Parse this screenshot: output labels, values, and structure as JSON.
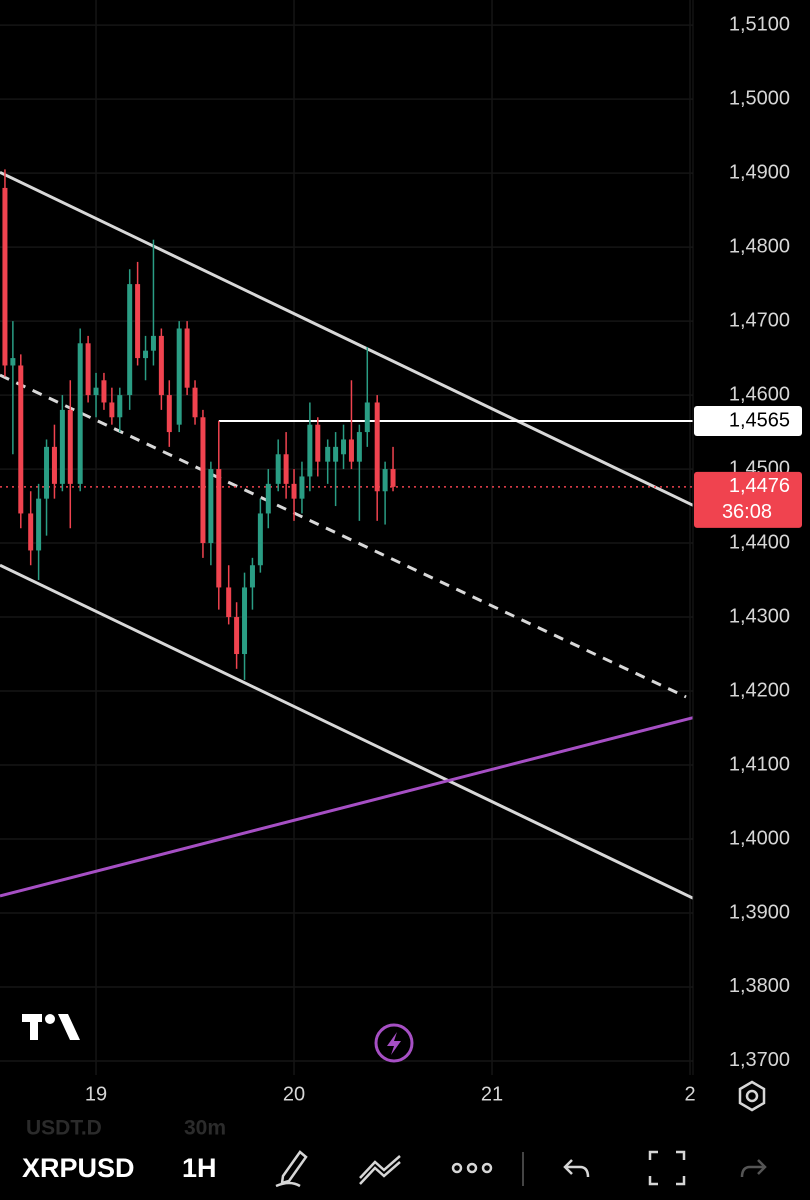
{
  "chart_data": {
    "type": "candlestick",
    "xlim": [
      18.515,
      22.015
    ],
    "xticks": [
      19,
      20,
      21,
      {
        "value": 22,
        "label": "2"
      }
    ],
    "ylim": [
      1.3681,
      1.5134
    ],
    "yticks": [
      {
        "value": 1.51,
        "label": "1,5100"
      },
      {
        "value": 1.5,
        "label": "1,5000"
      },
      {
        "value": 1.49,
        "label": "1,4900"
      },
      {
        "value": 1.48,
        "label": "1,4800"
      },
      {
        "value": 1.47,
        "label": "1,4700"
      },
      {
        "value": 1.46,
        "label": "1,4600"
      },
      {
        "value": 1.45,
        "label": "1,4500"
      },
      {
        "value": 1.44,
        "label": "1,4400"
      },
      {
        "value": 1.43,
        "label": "1,4300"
      },
      {
        "value": 1.42,
        "label": "1,4200"
      },
      {
        "value": 1.41,
        "label": "1,4100"
      },
      {
        "value": 1.4,
        "label": "1,4000"
      },
      {
        "value": 1.39,
        "label": "1,3900"
      },
      {
        "value": 1.38,
        "label": "1,3800"
      },
      {
        "value": 1.37,
        "label": "1,3700"
      }
    ],
    "grid": true,
    "up_color": "#2a9d84",
    "down_color": "#f0434f",
    "x": [
      18.54,
      18.58,
      18.62,
      18.67,
      18.71,
      18.75,
      18.79,
      18.83,
      18.87,
      18.92,
      18.96,
      19.0,
      19.04,
      19.08,
      19.12,
      19.17,
      19.21,
      19.25,
      19.29,
      19.33,
      19.37,
      19.42,
      19.46,
      19.5,
      19.54,
      19.58,
      19.62,
      19.67,
      19.71,
      19.75,
      19.79,
      19.83,
      19.87,
      19.92,
      19.96,
      20.0,
      20.04,
      20.08,
      20.12,
      20.17,
      20.21,
      20.25,
      20.29,
      20.33,
      20.37,
      20.42,
      20.46,
      20.5
    ],
    "open": [
      1.488,
      1.464,
      1.464,
      1.444,
      1.439,
      1.446,
      1.453,
      1.448,
      1.458,
      1.448,
      1.467,
      1.46,
      1.462,
      1.459,
      1.457,
      1.46,
      1.475,
      1.465,
      1.466,
      1.468,
      1.46,
      1.456,
      1.469,
      1.461,
      1.457,
      1.44,
      1.45,
      1.434,
      1.43,
      1.425,
      1.434,
      1.437,
      1.444,
      1.448,
      1.452,
      1.448,
      1.446,
      1.449,
      1.456,
      1.451,
      1.451,
      1.452,
      1.454,
      1.451,
      1.455,
      1.459,
      1.447,
      1.45
    ],
    "high": [
      1.4905,
      1.47,
      1.4655,
      1.447,
      1.448,
      1.454,
      1.456,
      1.46,
      1.462,
      1.469,
      1.468,
      1.463,
      1.463,
      1.461,
      1.461,
      1.477,
      1.478,
      1.468,
      1.481,
      1.469,
      1.462,
      1.47,
      1.47,
      1.462,
      1.458,
      1.451,
      1.4565,
      1.437,
      1.432,
      1.436,
      1.438,
      1.446,
      1.45,
      1.454,
      1.455,
      1.45,
      1.451,
      1.459,
      1.457,
      1.454,
      1.455,
      1.456,
      1.462,
      1.456,
      1.4665,
      1.46,
      1.451,
      1.453
    ],
    "low": [
      1.4625,
      1.452,
      1.442,
      1.437,
      1.435,
      1.441,
      1.446,
      1.447,
      1.442,
      1.447,
      1.459,
      1.457,
      1.458,
      1.456,
      1.455,
      1.458,
      1.464,
      1.462,
      1.464,
      1.458,
      1.453,
      1.455,
      1.46,
      1.456,
      1.438,
      1.437,
      1.431,
      1.429,
      1.423,
      1.4215,
      1.431,
      1.436,
      1.442,
      1.447,
      1.446,
      1.443,
      1.444,
      1.447,
      1.449,
      1.448,
      1.445,
      1.45,
      1.45,
      1.443,
      1.453,
      1.443,
      1.4425,
      1.447
    ],
    "close": [
      1.464,
      1.465,
      1.444,
      1.439,
      1.446,
      1.453,
      1.448,
      1.458,
      1.448,
      1.467,
      1.46,
      1.461,
      1.459,
      1.457,
      1.46,
      1.475,
      1.465,
      1.466,
      1.468,
      1.46,
      1.455,
      1.469,
      1.461,
      1.457,
      1.44,
      1.45,
      1.434,
      1.43,
      1.425,
      1.434,
      1.437,
      1.444,
      1.448,
      1.452,
      1.448,
      1.446,
      1.449,
      1.456,
      1.451,
      1.453,
      1.453,
      1.454,
      1.451,
      1.455,
      1.459,
      1.447,
      1.45,
      1.4476
    ],
    "lines": [
      {
        "x": [
          18.515,
          22.015
        ],
        "values": [
          1.4901,
          1.4451
        ],
        "color": "#d8d8d8",
        "style": "solid"
      },
      {
        "x": [
          18.515,
          21.98
        ],
        "values": [
          1.4627,
          1.4192
        ],
        "color": "#d8d8d8",
        "style": "dashed"
      },
      {
        "x": [
          18.515,
          22.015
        ],
        "values": [
          1.437,
          1.392
        ],
        "color": "#d8d8d8",
        "style": "solid"
      },
      {
        "x": [
          18.515,
          22.015
        ],
        "values": [
          1.3923,
          1.4164
        ],
        "color": "#a64fc4",
        "style": "solid"
      }
    ],
    "horizontal_line": {
      "value": 1.4565,
      "label": "1,4565",
      "x_start": 19.62,
      "color": "#ffffff"
    },
    "price_line": {
      "value": 1.4476,
      "label": "1,4476",
      "countdown": "36:08",
      "color": "#f0434f"
    }
  },
  "toolbar": {
    "symbol": "XRPUSD",
    "interval": "1H",
    "secondary_symbol": "USDT.D",
    "secondary_interval": "30m"
  }
}
